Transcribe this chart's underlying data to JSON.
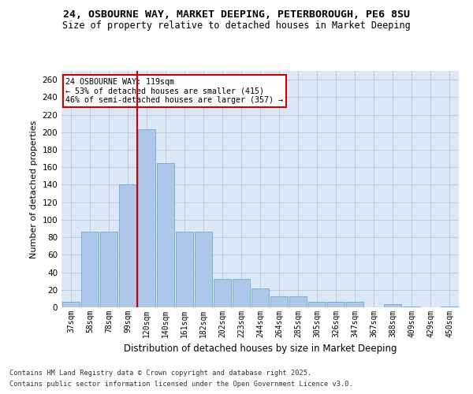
{
  "title_line1": "24, OSBOURNE WAY, MARKET DEEPING, PETERBOROUGH, PE6 8SU",
  "title_line2": "Size of property relative to detached houses in Market Deeping",
  "xlabel": "Distribution of detached houses by size in Market Deeping",
  "ylabel": "Number of detached properties",
  "categories": [
    "37sqm",
    "58sqm",
    "78sqm",
    "99sqm",
    "120sqm",
    "140sqm",
    "161sqm",
    "182sqm",
    "202sqm",
    "223sqm",
    "244sqm",
    "264sqm",
    "285sqm",
    "305sqm",
    "326sqm",
    "347sqm",
    "367sqm",
    "388sqm",
    "409sqm",
    "429sqm",
    "450sqm"
  ],
  "values": [
    6,
    86,
    86,
    140,
    203,
    165,
    86,
    86,
    32,
    32,
    22,
    13,
    13,
    6,
    6,
    6,
    0,
    4,
    1,
    0,
    1
  ],
  "bar_color": "#aec6e8",
  "bar_edge_color": "#6aaad4",
  "annotation_text_line1": "24 OSBOURNE WAY: 119sqm",
  "annotation_text_line2": "← 53% of detached houses are smaller (415)",
  "annotation_text_line3": "46% of semi-detached houses are larger (357) →",
  "annotation_box_color": "#ffffff",
  "annotation_box_edge": "#cc0000",
  "ref_line_color": "#cc0000",
  "ylim": [
    0,
    270
  ],
  "yticks": [
    0,
    20,
    40,
    60,
    80,
    100,
    120,
    140,
    160,
    180,
    200,
    220,
    240,
    260
  ],
  "footer_line1": "Contains HM Land Registry data © Crown copyright and database right 2025.",
  "footer_line2": "Contains public sector information licensed under the Open Government Licence v3.0.",
  "bg_color": "#ffffff",
  "plot_bg_color": "#dce8f5",
  "grid_color": "#b8cfe0"
}
